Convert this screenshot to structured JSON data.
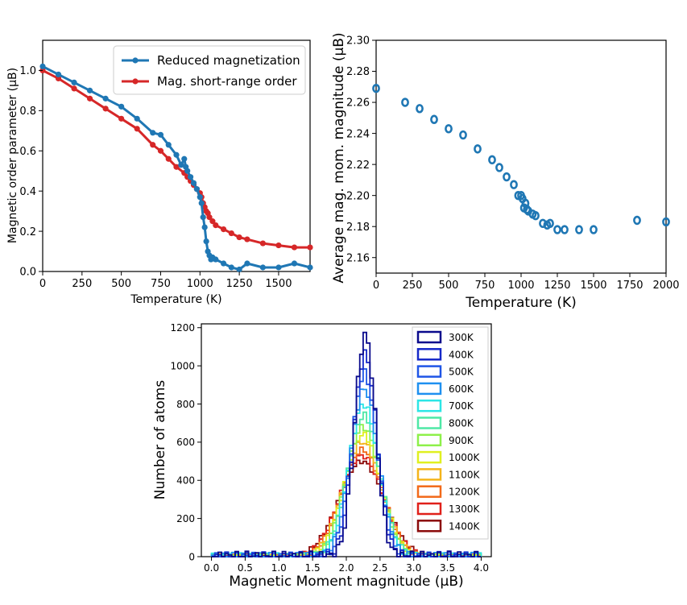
{
  "chart_data": [
    {
      "type": "line",
      "xlabel": "Temperature (K)",
      "ylabel": "Magnetic order parameter (µB)",
      "xlim": [
        0,
        1700
      ],
      "ylim": [
        0,
        1.15
      ],
      "xticks": [
        "0",
        "250",
        "500",
        "750",
        "1000",
        "1250",
        "1500"
      ],
      "yticks": [
        "0.0",
        "0.2",
        "0.4",
        "0.6",
        "0.8",
        "1.0"
      ],
      "legend_position": "top-right",
      "series": [
        {
          "name": "Reduced magnetization",
          "color": "#1f77b4",
          "x": [
            0,
            100,
            200,
            300,
            400,
            500,
            600,
            700,
            750,
            800,
            850,
            880,
            900,
            910,
            920,
            940,
            960,
            980,
            1000,
            1010,
            1020,
            1030,
            1040,
            1050,
            1060,
            1070,
            1080,
            1100,
            1150,
            1200,
            1250,
            1300,
            1400,
            1500,
            1600,
            1700
          ],
          "y": [
            1.02,
            0.98,
            0.94,
            0.9,
            0.86,
            0.82,
            0.76,
            0.69,
            0.68,
            0.63,
            0.58,
            0.53,
            0.56,
            0.52,
            0.5,
            0.47,
            0.44,
            0.41,
            0.37,
            0.34,
            0.27,
            0.22,
            0.15,
            0.1,
            0.08,
            0.06,
            0.07,
            0.06,
            0.04,
            0.02,
            0.01,
            0.04,
            0.02,
            0.02,
            0.04,
            0.02
          ]
        },
        {
          "name": "Mag. short-range order",
          "color": "#d62728",
          "x": [
            0,
            100,
            200,
            300,
            400,
            500,
            600,
            700,
            750,
            800,
            850,
            900,
            920,
            940,
            960,
            980,
            1000,
            1010,
            1020,
            1030,
            1040,
            1050,
            1060,
            1080,
            1100,
            1150,
            1200,
            1250,
            1300,
            1400,
            1500,
            1600,
            1700
          ],
          "y": [
            1.0,
            0.96,
            0.91,
            0.86,
            0.81,
            0.76,
            0.71,
            0.63,
            0.6,
            0.56,
            0.52,
            0.49,
            0.47,
            0.45,
            0.43,
            0.41,
            0.39,
            0.37,
            0.34,
            0.32,
            0.3,
            0.29,
            0.27,
            0.25,
            0.23,
            0.21,
            0.19,
            0.17,
            0.16,
            0.14,
            0.13,
            0.12,
            0.12
          ]
        }
      ]
    },
    {
      "type": "scatter",
      "xlabel": "Temperature (K)",
      "ylabel": "Average mag. mom. magnitude (µB)",
      "xlim": [
        0,
        2000
      ],
      "ylim": [
        2.15,
        2.3
      ],
      "xticks": [
        "0",
        "250",
        "500",
        "750",
        "1000",
        "1250",
        "1500",
        "1750",
        "2000"
      ],
      "yticks": [
        "2.16",
        "2.18",
        "2.20",
        "2.22",
        "2.24",
        "2.26",
        "2.28",
        "2.30"
      ],
      "color": "#1f77b4",
      "x": [
        0,
        200,
        300,
        400,
        500,
        600,
        700,
        800,
        850,
        900,
        950,
        980,
        1000,
        1010,
        1020,
        1030,
        1040,
        1050,
        1080,
        1100,
        1150,
        1180,
        1200,
        1250,
        1300,
        1400,
        1500,
        1800,
        2000
      ],
      "y": [
        2.269,
        2.26,
        2.256,
        2.249,
        2.243,
        2.239,
        2.23,
        2.223,
        2.218,
        2.212,
        2.207,
        2.2,
        2.2,
        2.198,
        2.192,
        2.195,
        2.191,
        2.19,
        2.188,
        2.187,
        2.182,
        2.181,
        2.182,
        2.178,
        2.178,
        2.178,
        2.178,
        2.184,
        2.183
      ]
    },
    {
      "type": "histogram",
      "xlabel": "Magnetic Moment magnitude (µB)",
      "ylabel": "Number of atoms",
      "xlim": [
        -0.15,
        4.15
      ],
      "ylim": [
        0,
        1220
      ],
      "xticks": [
        "0.0",
        "0.5",
        "1.0",
        "1.5",
        "2.0",
        "2.5",
        "3.0",
        "3.5",
        "4.0"
      ],
      "yticks": [
        "0",
        "200",
        "400",
        "600",
        "800",
        "1000",
        "1200"
      ],
      "bin_width": 0.05,
      "legend_position": "top-right",
      "series": [
        {
          "name": "300K",
          "color": "#0a0a8c",
          "mean": 2.28,
          "sigma": 0.155,
          "peak": 1160
        },
        {
          "name": "400K",
          "color": "#1528c8",
          "mean": 2.28,
          "sigma": 0.172,
          "peak": 1060
        },
        {
          "name": "500K",
          "color": "#1f55e6",
          "mean": 2.27,
          "sigma": 0.188,
          "peak": 960
        },
        {
          "name": "600K",
          "color": "#1e90f0",
          "mean": 2.27,
          "sigma": 0.205,
          "peak": 880
        },
        {
          "name": "700K",
          "color": "#2ce6e6",
          "mean": 2.26,
          "sigma": 0.222,
          "peak": 800
        },
        {
          "name": "800K",
          "color": "#4ee8a6",
          "mean": 2.26,
          "sigma": 0.238,
          "peak": 740
        },
        {
          "name": "900K",
          "color": "#8ef04a",
          "mean": 2.25,
          "sigma": 0.254,
          "peak": 680
        },
        {
          "name": "1000K",
          "color": "#e0f020",
          "mean": 2.25,
          "sigma": 0.27,
          "peak": 640
        },
        {
          "name": "1100K",
          "color": "#f4b41a",
          "mean": 2.24,
          "sigma": 0.285,
          "peak": 600
        },
        {
          "name": "1200K",
          "color": "#f26a1a",
          "mean": 2.24,
          "sigma": 0.3,
          "peak": 560
        },
        {
          "name": "1300K",
          "color": "#e0201a",
          "mean": 2.23,
          "sigma": 0.318,
          "peak": 530
        },
        {
          "name": "1400K",
          "color": "#8b0a0a",
          "mean": 2.23,
          "sigma": 0.335,
          "peak": 500
        }
      ]
    }
  ]
}
